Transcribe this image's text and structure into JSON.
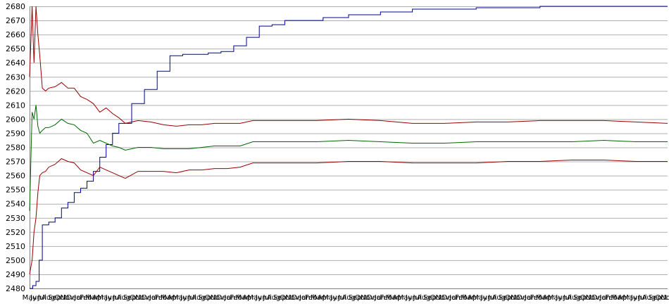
{
  "chart_data": {
    "type": "line",
    "title": "",
    "xlabel": "",
    "ylabel": "",
    "ylim": [
      2480,
      2680
    ],
    "yticks": [
      2480,
      2490,
      2500,
      2510,
      2520,
      2530,
      2540,
      2550,
      2560,
      2570,
      2580,
      2590,
      2600,
      2610,
      2620,
      2630,
      2640,
      2650,
      2660,
      2670,
      2680
    ],
    "x_tick_labels": [
      "May",
      "Jun",
      "Jul",
      "Aug",
      "Sep",
      "Oct",
      "Nov",
      "Dec",
      "Jan",
      "Feb",
      "Mar",
      "Apr",
      "May",
      "Jun",
      "Jul",
      "Aug",
      "Sep",
      "Oct",
      "Nov",
      "Dec",
      "Jan",
      "Feb",
      "Mar",
      "Apr",
      "May",
      "Jun",
      "Jul",
      "Aug",
      "Sep",
      "Oct",
      "Nov",
      "Dec",
      "Jan",
      "Feb",
      "Mar",
      "Apr",
      "May",
      "Jun",
      "Jul",
      "Aug",
      "Sep",
      "Oct",
      "Nov",
      "Dec",
      "Jan",
      "Feb",
      "Mar",
      "Apr",
      "May",
      "Jun",
      "Jul",
      "Aug",
      "Sep",
      "Oct",
      "Nov",
      "Dec",
      "Jan",
      "Feb",
      "Mar",
      "Apr",
      "May",
      "Jun",
      "Jul",
      "Aug",
      "Sep",
      "Oct",
      "Nov",
      "Dec",
      "Jan",
      "Feb",
      "Mar",
      "Apr",
      "May",
      "Jun",
      "Jul",
      "Aug",
      "Sep",
      "Oct",
      "Nov",
      "Dec",
      "Jan",
      "Feb",
      "Mar",
      "Apr",
      "May",
      "Jun",
      "Jul",
      "Aug",
      "Sep",
      "Oct",
      "Nov",
      "Dec",
      "Jan",
      "Feb",
      "Mar",
      "Apr",
      "May",
      "Jun",
      "Jul",
      "Aug",
      "Sep",
      "Oct",
      "Nov"
    ],
    "x_range": [
      0,
      100
    ],
    "grid": "horizontal",
    "series": [
      {
        "color": "#000099",
        "x": [
          0,
          0.5,
          1,
          1.5,
          2,
          3,
          4,
          5,
          6,
          7,
          8,
          9,
          10,
          11,
          12,
          13,
          14,
          16,
          18,
          20,
          22,
          24,
          26,
          28,
          30,
          32,
          34,
          36,
          38,
          40,
          43,
          46,
          50,
          55,
          60,
          65,
          70,
          80,
          90,
          100
        ],
        "y": [
          2480,
          2482,
          2485,
          2500,
          2525,
          2527,
          2530,
          2537,
          2541,
          2548,
          2551,
          2556,
          2563,
          2573,
          2582,
          2590,
          2597,
          2611,
          2621,
          2634,
          2645,
          2646,
          2646,
          2647,
          2648,
          2652,
          2658,
          2666,
          2667,
          2670,
          2670,
          2672,
          2674,
          2676,
          2678,
          2678,
          2679,
          2680,
          2680,
          2680
        ]
      },
      {
        "color": "#990000",
        "x": [
          0,
          0.4,
          0.7,
          1,
          1.3,
          1.6,
          2,
          2.5,
          3,
          4,
          5,
          6,
          7,
          8,
          9,
          10,
          11,
          12,
          13,
          14,
          15,
          17,
          19,
          21,
          23,
          25,
          27,
          29,
          31,
          33,
          35,
          40,
          45,
          50,
          55,
          60,
          65,
          70,
          75,
          80,
          85,
          90,
          95,
          100
        ],
        "y": [
          2630,
          2680,
          2640,
          2680,
          2660,
          2645,
          2622,
          2620,
          2622,
          2623,
          2626,
          2622,
          2622,
          2616,
          2614,
          2611,
          2605,
          2608,
          2604,
          2601,
          2597,
          2599,
          2598,
          2596,
          2595,
          2596,
          2596,
          2597,
          2597,
          2597,
          2599,
          2599,
          2599,
          2600,
          2599,
          2597,
          2597,
          2598,
          2598,
          2599,
          2599,
          2599,
          2598,
          2597
        ]
      },
      {
        "color": "#006600",
        "x": [
          0,
          0.4,
          0.7,
          1,
          1.3,
          1.6,
          2,
          2.5,
          3,
          4,
          5,
          6,
          7,
          8,
          9,
          10,
          11,
          12,
          13,
          14,
          15,
          17,
          19,
          21,
          23,
          25,
          27,
          29,
          31,
          33,
          35,
          40,
          45,
          50,
          55,
          60,
          65,
          70,
          75,
          80,
          85,
          90,
          95,
          100
        ],
        "y": [
          2535,
          2605,
          2600,
          2610,
          2595,
          2590,
          2592,
          2594,
          2594,
          2596,
          2600,
          2597,
          2596,
          2592,
          2590,
          2583,
          2585,
          2583,
          2581,
          2580,
          2578,
          2580,
          2580,
          2579,
          2579,
          2579,
          2580,
          2581,
          2581,
          2581,
          2584,
          2584,
          2584,
          2585,
          2584,
          2583,
          2583,
          2584,
          2584,
          2584,
          2584,
          2585,
          2584,
          2584
        ]
      },
      {
        "color": "#990000",
        "x": [
          0,
          0.4,
          0.7,
          1,
          1.3,
          1.6,
          2,
          2.5,
          3,
          4,
          5,
          6,
          7,
          8,
          9,
          10,
          11,
          12,
          13,
          14,
          15,
          17,
          19,
          21,
          23,
          25,
          27,
          29,
          31,
          33,
          35,
          40,
          45,
          50,
          55,
          60,
          65,
          70,
          75,
          80,
          85,
          90,
          95,
          100
        ],
        "y": [
          2490,
          2500,
          2520,
          2530,
          2548,
          2560,
          2562,
          2563,
          2566,
          2568,
          2572,
          2570,
          2569,
          2564,
          2562,
          2560,
          2566,
          2564,
          2562,
          2560,
          2558,
          2563,
          2563,
          2563,
          2562,
          2564,
          2564,
          2565,
          2565,
          2566,
          2569,
          2569,
          2569,
          2570,
          2570,
          2569,
          2569,
          2569,
          2570,
          2570,
          2571,
          2571,
          2570,
          2570
        ]
      }
    ]
  }
}
